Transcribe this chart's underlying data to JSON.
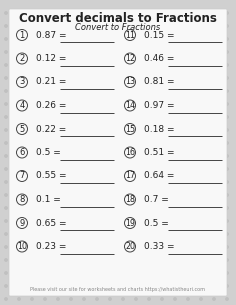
{
  "title": "Convert decimals to Fractions",
  "subtitle": "Convert to Fractions",
  "background_color": "#d0d0d0",
  "paper_color": "#f8f8f8",
  "footer": "Please visit our site for worksheets and charts https://whatistheuri.com",
  "left_items": [
    {
      "num": "1",
      "val": "0.87"
    },
    {
      "num": "2",
      "val": "0.12"
    },
    {
      "num": "3",
      "val": "0.21"
    },
    {
      "num": "4",
      "val": "0.26"
    },
    {
      "num": "5",
      "val": "0.22"
    },
    {
      "num": "6",
      "val": "0.5"
    },
    {
      "num": "7",
      "val": "0.55"
    },
    {
      "num": "8",
      "val": "0.1"
    },
    {
      "num": "9",
      "val": "0.65"
    },
    {
      "num": "10",
      "val": "0.23"
    }
  ],
  "right_items": [
    {
      "num": "11",
      "val": "0.15"
    },
    {
      "num": "12",
      "val": "0.46"
    },
    {
      "num": "13",
      "val": "0.81"
    },
    {
      "num": "14",
      "val": "0.97"
    },
    {
      "num": "15",
      "val": "0.18"
    },
    {
      "num": "16",
      "val": "0.51"
    },
    {
      "num": "17",
      "val": "0.64"
    },
    {
      "num": "18",
      "val": "0.7"
    },
    {
      "num": "19",
      "val": "0.5"
    },
    {
      "num": "20",
      "val": "0.33"
    }
  ],
  "dot_color": "#c0c0c0",
  "circle_edge_color": "#444444",
  "text_color": "#222222",
  "line_color": "#444444",
  "title_fontsize": 8.5,
  "subtitle_fontsize": 6.0,
  "item_fontsize": 6.5,
  "footer_fontsize": 3.5
}
